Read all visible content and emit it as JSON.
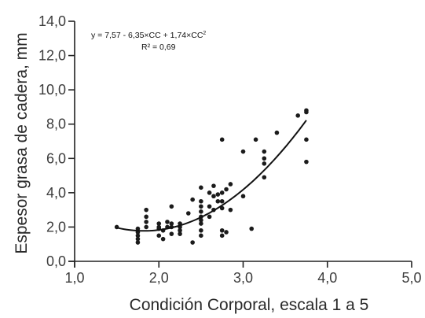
{
  "chart_data": {
    "type": "scatter",
    "title": "",
    "xlabel": "Condición Corporal, escala 1 a 5",
    "ylabel": "Espesor grasa de cadera, mm",
    "xlim": [
      1.0,
      5.0
    ],
    "ylim": [
      0.0,
      14.0
    ],
    "x_ticks": [
      1.0,
      2.0,
      3.0,
      4.0,
      5.0
    ],
    "x_tick_labels": [
      "1,0",
      "2,0",
      "3,0",
      "4,0",
      "5,0"
    ],
    "y_ticks": [
      0,
      2,
      4,
      6,
      8,
      10,
      12,
      14
    ],
    "y_tick_labels": [
      "0,0",
      "2,0",
      "4,0",
      "6,0",
      "8,0",
      "10,0",
      "12,0",
      "14,0"
    ],
    "grid": false,
    "legend": "none",
    "equation": {
      "text": "y = 7,57 - 6,35×CC + 1,74×CC",
      "exponent": "2",
      "r2": "R² = 0,69"
    },
    "fit": {
      "type": "polynomial",
      "coefficients": [
        7.57,
        -6.35,
        1.74
      ],
      "x_range": [
        1.5,
        3.75
      ]
    },
    "series": [
      {
        "points": [
          [
            1.5,
            2.0
          ],
          [
            1.75,
            1.1
          ],
          [
            1.75,
            1.3
          ],
          [
            1.75,
            1.5
          ],
          [
            1.75,
            1.7
          ],
          [
            1.75,
            1.9
          ],
          [
            1.85,
            2.0
          ],
          [
            1.85,
            2.3
          ],
          [
            1.85,
            2.6
          ],
          [
            1.85,
            3.0
          ],
          [
            2.0,
            1.5
          ],
          [
            2.0,
            1.9
          ],
          [
            2.0,
            2.0
          ],
          [
            2.0,
            2.2
          ],
          [
            2.05,
            1.3
          ],
          [
            2.05,
            1.8
          ],
          [
            2.1,
            2.0
          ],
          [
            2.1,
            2.3
          ],
          [
            2.15,
            1.6
          ],
          [
            2.15,
            2.0
          ],
          [
            2.15,
            2.2
          ],
          [
            2.15,
            3.2
          ],
          [
            2.25,
            1.6
          ],
          [
            2.25,
            1.8
          ],
          [
            2.25,
            2.0
          ],
          [
            2.25,
            2.2
          ],
          [
            2.35,
            2.8
          ],
          [
            2.4,
            1.1
          ],
          [
            2.4,
            3.6
          ],
          [
            2.5,
            1.5
          ],
          [
            2.5,
            1.8
          ],
          [
            2.5,
            2.2
          ],
          [
            2.5,
            2.4
          ],
          [
            2.5,
            2.6
          ],
          [
            2.5,
            2.9
          ],
          [
            2.5,
            3.2
          ],
          [
            2.5,
            3.5
          ],
          [
            2.5,
            4.3
          ],
          [
            2.6,
            2.6
          ],
          [
            2.6,
            3.2
          ],
          [
            2.6,
            4.0
          ],
          [
            2.65,
            3.0
          ],
          [
            2.65,
            3.8
          ],
          [
            2.65,
            4.4
          ],
          [
            2.7,
            3.9
          ],
          [
            2.7,
            3.5
          ],
          [
            2.75,
            1.5
          ],
          [
            2.75,
            1.8
          ],
          [
            2.75,
            3.1
          ],
          [
            2.75,
            3.5
          ],
          [
            2.75,
            4.0
          ],
          [
            2.75,
            7.1
          ],
          [
            2.8,
            1.7
          ],
          [
            2.8,
            4.2
          ],
          [
            2.85,
            3.0
          ],
          [
            2.85,
            4.5
          ],
          [
            3.0,
            3.8
          ],
          [
            3.0,
            6.4
          ],
          [
            3.1,
            1.9
          ],
          [
            3.15,
            7.1
          ],
          [
            3.25,
            4.9
          ],
          [
            3.25,
            5.7
          ],
          [
            3.25,
            6.0
          ],
          [
            3.25,
            6.4
          ],
          [
            3.4,
            7.5
          ],
          [
            3.65,
            8.5
          ],
          [
            3.75,
            5.8
          ],
          [
            3.75,
            7.1
          ],
          [
            3.75,
            8.7
          ],
          [
            3.75,
            8.8
          ]
        ]
      }
    ]
  }
}
